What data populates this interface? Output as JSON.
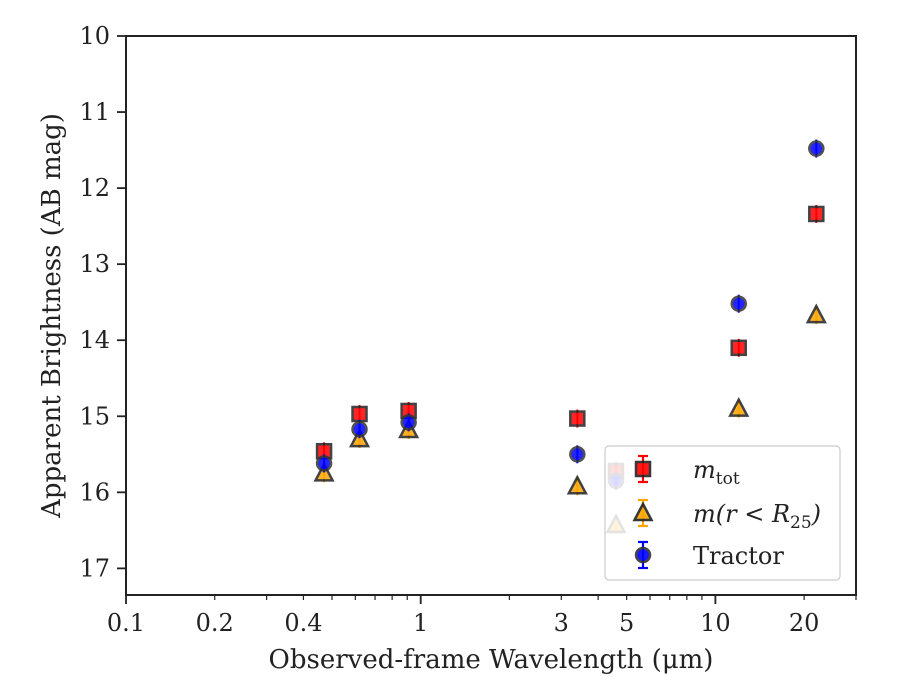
{
  "chart_data": {
    "type": "scatter",
    "title": "",
    "xlabel": "Observed-frame Wavelength (μm)",
    "ylabel": "Apparent Brightness (AB mag)",
    "xscale": "log",
    "yaxis_inverted": true,
    "xlim": [
      0.1,
      30
    ],
    "ylim": [
      10,
      17.35
    ],
    "xticks": [
      {
        "value": 0.1,
        "label": "0.1"
      },
      {
        "value": 0.2,
        "label": "0.2"
      },
      {
        "value": 0.4,
        "label": "0.4"
      },
      {
        "value": 1,
        "label": "1"
      },
      {
        "value": 3,
        "label": "3"
      },
      {
        "value": 5,
        "label": "5"
      },
      {
        "value": 10,
        "label": "10"
      },
      {
        "value": 20,
        "label": "20"
      }
    ],
    "yticks": [
      {
        "value": 10,
        "label": "10"
      },
      {
        "value": 11,
        "label": "11"
      },
      {
        "value": 12,
        "label": "12"
      },
      {
        "value": 13,
        "label": "13"
      },
      {
        "value": 14,
        "label": "14"
      },
      {
        "value": 15,
        "label": "15"
      },
      {
        "value": 16,
        "label": "16"
      },
      {
        "value": 17,
        "label": "17"
      }
    ],
    "grid": false,
    "legend_position": "lower-right",
    "series": [
      {
        "name": "m_tot",
        "label_prefix": "m",
        "label_sub": "tot",
        "label_suffix": "",
        "marker": "square",
        "color": "#ff0000",
        "edge_color": "#222222",
        "points": [
          {
            "x": 0.47,
            "y": 15.46
          },
          {
            "x": 0.62,
            "y": 14.97
          },
          {
            "x": 0.91,
            "y": 14.93
          },
          {
            "x": 3.4,
            "y": 15.03
          },
          {
            "x": 4.6,
            "y": 15.72
          },
          {
            "x": 12.0,
            "y": 14.1
          },
          {
            "x": 22.0,
            "y": 12.34
          }
        ]
      },
      {
        "name": "m(r < R_25)",
        "label_prefix": "m(r < R",
        "label_sub": "25",
        "label_suffix": ")",
        "marker": "triangle",
        "color": "#ffa500",
        "edge_color": "#222222",
        "points": [
          {
            "x": 0.47,
            "y": 15.75
          },
          {
            "x": 0.62,
            "y": 15.3
          },
          {
            "x": 0.91,
            "y": 15.18
          },
          {
            "x": 3.4,
            "y": 15.92
          },
          {
            "x": 4.6,
            "y": 16.43
          },
          {
            "x": 12.0,
            "y": 14.9
          },
          {
            "x": 22.0,
            "y": 13.67
          }
        ]
      },
      {
        "name": "Tractor",
        "label_prefix": "Tractor",
        "label_sub": "",
        "label_suffix": "",
        "marker": "circle",
        "color": "#0000ff",
        "edge_color": "#333333",
        "points": [
          {
            "x": 0.47,
            "y": 15.62
          },
          {
            "x": 0.62,
            "y": 15.17
          },
          {
            "x": 0.91,
            "y": 15.08
          },
          {
            "x": 3.4,
            "y": 15.5
          },
          {
            "x": 4.6,
            "y": 15.85
          },
          {
            "x": 12.0,
            "y": 13.52
          },
          {
            "x": 22.0,
            "y": 11.48
          }
        ]
      }
    ]
  }
}
